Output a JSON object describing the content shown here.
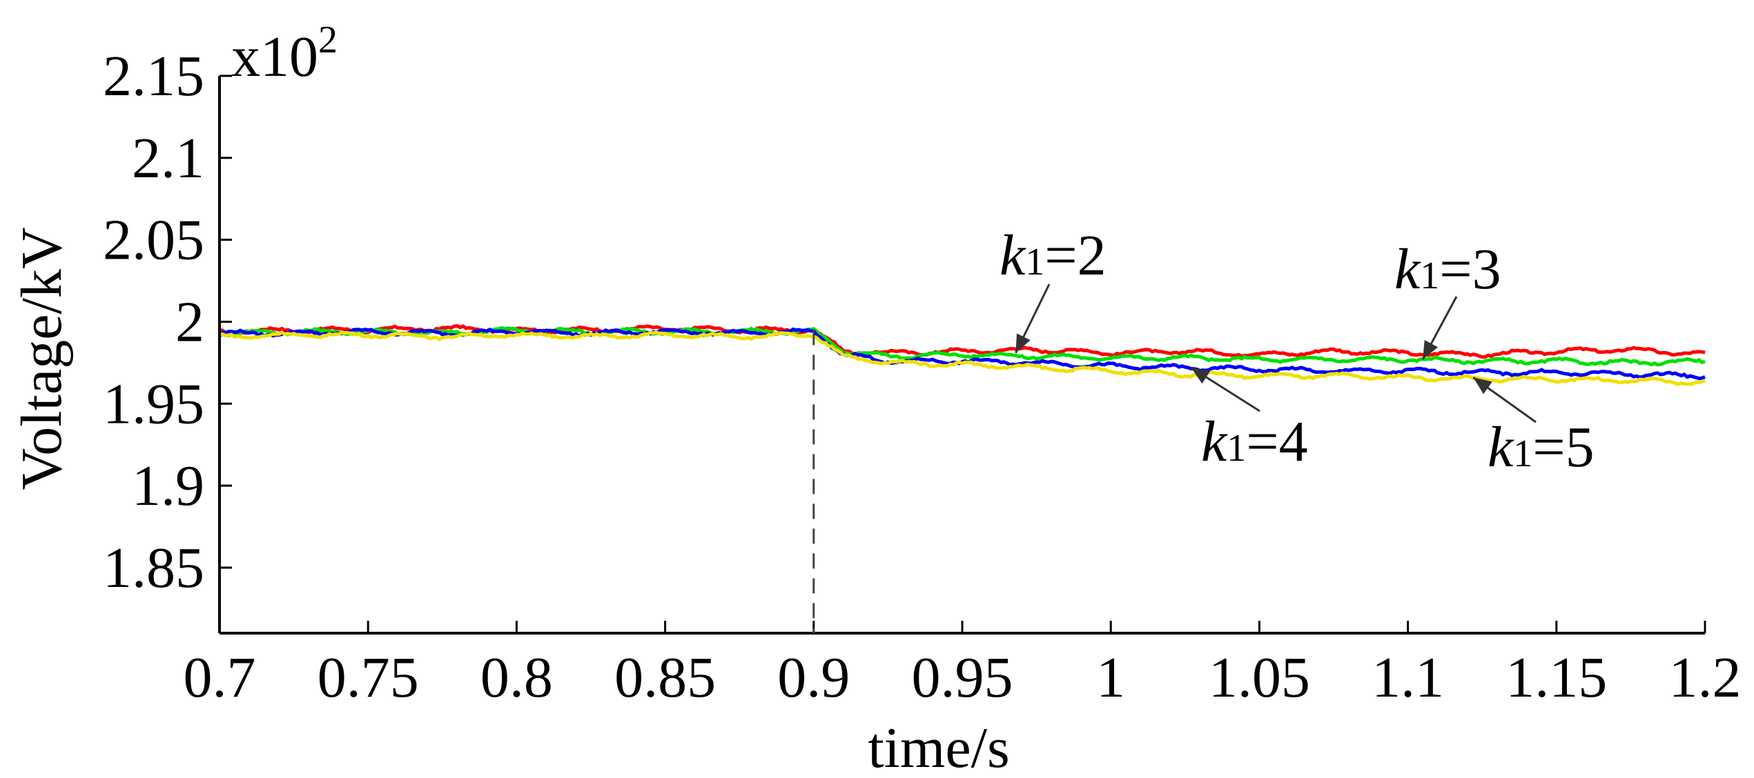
{
  "chart_data": {
    "type": "line",
    "title": "",
    "xlabel": "time/s",
    "ylabel": "Voltage/kV",
    "y_multiplier": {
      "base": "x10",
      "exp": "2"
    },
    "xlim": [
      0.7,
      1.2
    ],
    "ylim": [
      1.81,
      2.15
    ],
    "x_ticks": [
      0.7,
      0.75,
      0.8,
      0.85,
      0.9,
      0.95,
      1,
      1.05,
      1.1,
      1.15,
      1.2
    ],
    "x_tick_labels": [
      "0.7",
      "0.75",
      "0.8",
      "0.85",
      "0.9",
      "0.95",
      "1",
      "1.05",
      "1.1",
      "1.15",
      "1.2"
    ],
    "y_ticks": [
      1.85,
      1.9,
      1.95,
      2,
      2.05,
      2.1,
      2.15
    ],
    "y_tick_labels": [
      "1.85",
      "1.9",
      "1.95",
      "2",
      "2.05",
      "2.1",
      "2.15"
    ],
    "event_line_x": 0.9,
    "x": [
      0.7,
      0.725,
      0.75,
      0.775,
      0.8,
      0.825,
      0.85,
      0.875,
      0.9,
      0.91,
      0.925,
      0.95,
      0.975,
      1.0,
      1.025,
      1.05,
      1.075,
      1.1,
      1.125,
      1.15,
      1.175,
      1.2
    ],
    "series": [
      {
        "name": "k1=2",
        "color": "#ff0000",
        "values": [
          1.994,
          1.995,
          1.995,
          1.996,
          1.995,
          1.995,
          1.996,
          1.995,
          1.995,
          1.982,
          1.981,
          1.982,
          1.983,
          1.981,
          1.982,
          1.98,
          1.982,
          1.981,
          1.98,
          1.982,
          1.983,
          1.98
        ]
      },
      {
        "name": "k1=3",
        "color": "#00e000",
        "values": [
          1.993,
          1.994,
          1.994,
          1.993,
          1.995,
          1.994,
          1.994,
          1.994,
          1.994,
          1.982,
          1.979,
          1.98,
          1.979,
          1.978,
          1.978,
          1.977,
          1.977,
          1.977,
          1.976,
          1.976,
          1.975,
          1.976
        ]
      },
      {
        "name": "k1=4",
        "color": "#0000ff",
        "values": [
          1.993,
          1.993,
          1.994,
          1.993,
          1.994,
          1.993,
          1.994,
          1.993,
          1.994,
          1.98,
          1.976,
          1.976,
          1.975,
          1.973,
          1.972,
          1.971,
          1.97,
          1.97,
          1.969,
          1.969,
          1.968,
          1.967
        ]
      },
      {
        "name": "k1=5",
        "color": "#f0e000",
        "values": [
          1.991,
          1.992,
          1.992,
          1.991,
          1.992,
          1.991,
          1.992,
          1.991,
          1.992,
          1.979,
          1.975,
          1.974,
          1.972,
          1.97,
          1.968,
          1.967,
          1.967,
          1.966,
          1.965,
          1.965,
          1.964,
          1.963
        ]
      }
    ],
    "annotations": [
      {
        "base": "k",
        "sub": "1",
        "rest": "=2",
        "series": "k1=2",
        "x": 0.968,
        "y": 1.981
      },
      {
        "base": "k",
        "sub": "1",
        "rest": "=3",
        "series": "k1=3",
        "x": 1.105,
        "y": 1.977
      },
      {
        "base": "k",
        "sub": "1",
        "rest": "=4",
        "series": "k1=4",
        "x": 1.027,
        "y": 1.972
      },
      {
        "base": "k",
        "sub": "1",
        "rest": "=5",
        "series": "k1=5",
        "x": 1.122,
        "y": 1.966
      }
    ]
  }
}
